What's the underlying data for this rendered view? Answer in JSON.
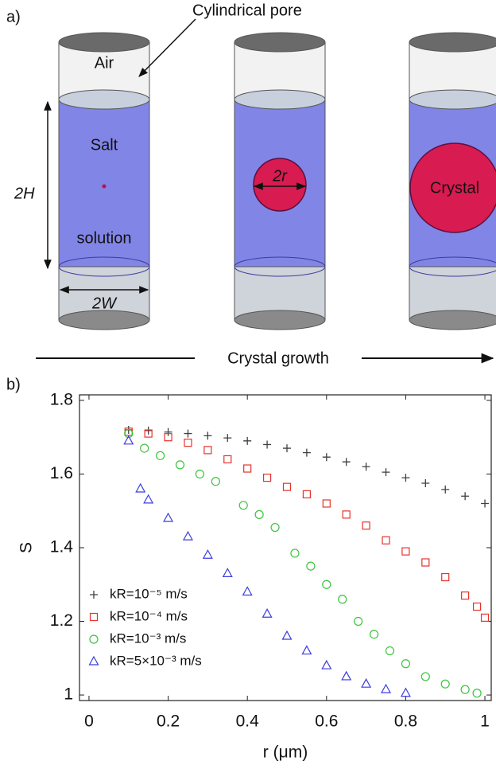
{
  "diagram": {
    "panel_label": "a)",
    "pore_label": "Cylindrical pore",
    "air_label": "Air",
    "salt_label": "Salt",
    "solution_label": "solution",
    "height_label": "2H",
    "width_label": "2W",
    "radius_label": "2r",
    "crystal_label": "Crystal",
    "growth_label": "Crystal growth"
  },
  "chart_data": {
    "type": "scatter",
    "panel_label": "b)",
    "xlabel": "r (μm)",
    "ylabel": "S",
    "xlim": [
      -0.024,
      1.016
    ],
    "ylim": [
      0.985,
      1.815
    ],
    "xticks": [
      0,
      0.2,
      0.4,
      0.6,
      0.8,
      1
    ],
    "yticks": [
      1,
      1.2,
      1.4,
      1.6,
      1.8
    ],
    "legend": "lower left",
    "series": [
      {
        "name": "kR=10⁻⁵ m/s",
        "color": "#404040",
        "marker": "+",
        "x": [
          0.1,
          0.15,
          0.2,
          0.25,
          0.3,
          0.35,
          0.4,
          0.45,
          0.5,
          0.55,
          0.6,
          0.65,
          0.7,
          0.75,
          0.8,
          0.85,
          0.9,
          0.95,
          1.0
        ],
        "values": [
          1.72,
          1.718,
          1.714,
          1.71,
          1.704,
          1.698,
          1.69,
          1.68,
          1.67,
          1.658,
          1.646,
          1.633,
          1.62,
          1.605,
          1.59,
          1.575,
          1.558,
          1.54,
          1.52
        ]
      },
      {
        "name": "kR=10⁻⁴ m/s",
        "color": "#e8312a",
        "marker": "s",
        "x": [
          0.1,
          0.15,
          0.2,
          0.25,
          0.3,
          0.35,
          0.4,
          0.45,
          0.5,
          0.55,
          0.6,
          0.65,
          0.7,
          0.75,
          0.8,
          0.85,
          0.9,
          0.95,
          0.98,
          1.0
        ],
        "values": [
          1.715,
          1.71,
          1.7,
          1.685,
          1.665,
          1.64,
          1.615,
          1.59,
          1.565,
          1.545,
          1.52,
          1.49,
          1.46,
          1.42,
          1.39,
          1.36,
          1.32,
          1.27,
          1.24,
          1.21
        ]
      },
      {
        "name": "kR=10⁻³ m/s",
        "color": "#3cc43c",
        "marker": "o",
        "x": [
          0.1,
          0.14,
          0.18,
          0.23,
          0.28,
          0.32,
          0.39,
          0.43,
          0.47,
          0.52,
          0.56,
          0.6,
          0.64,
          0.68,
          0.72,
          0.76,
          0.8,
          0.85,
          0.9,
          0.95,
          0.98
        ],
        "values": [
          1.71,
          1.67,
          1.65,
          1.625,
          1.6,
          1.58,
          1.515,
          1.49,
          1.455,
          1.385,
          1.35,
          1.3,
          1.26,
          1.2,
          1.165,
          1.12,
          1.085,
          1.05,
          1.03,
          1.015,
          1.005
        ]
      },
      {
        "name": "kR=5×10⁻³ m/s",
        "color": "#3c3ce0",
        "marker": "^",
        "x": [
          0.1,
          0.13,
          0.15,
          0.2,
          0.25,
          0.3,
          0.35,
          0.4,
          0.45,
          0.5,
          0.55,
          0.6,
          0.65,
          0.7,
          0.75,
          0.8
        ],
        "values": [
          1.69,
          1.56,
          1.53,
          1.48,
          1.43,
          1.38,
          1.33,
          1.28,
          1.22,
          1.16,
          1.12,
          1.08,
          1.05,
          1.03,
          1.015,
          1.005
        ]
      }
    ]
  }
}
